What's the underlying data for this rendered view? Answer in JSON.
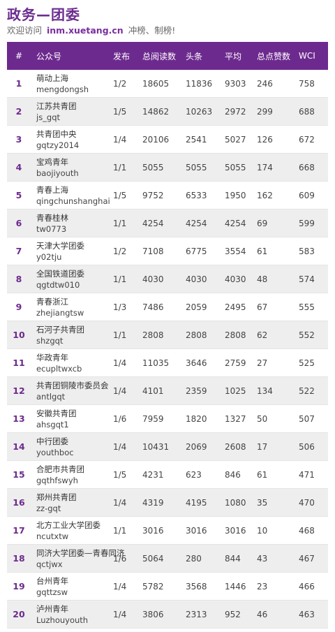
{
  "header": {
    "title": "政务—团委",
    "visit_prefix": "欢迎访问",
    "site": "inm.xuetang.cn",
    "visit_suffix": "冲榜、制榜!"
  },
  "table": {
    "columns": {
      "rank": "#",
      "name": "公众号",
      "pub": "发布",
      "reads": "总阅读数",
      "head": "头条",
      "avg": "平均",
      "likes": "总点赞数",
      "wci": "WCI"
    },
    "rows": [
      {
        "rank": "1",
        "name": "萌动上海",
        "account": "mengdongsh",
        "pub": "1/2",
        "reads": "18605",
        "head": "11836",
        "avg": "9303",
        "likes": "246",
        "wci": "758"
      },
      {
        "rank": "2",
        "name": "江苏共青团",
        "account": "js_gqt",
        "pub": "1/5",
        "reads": "14862",
        "head": "10263",
        "avg": "2972",
        "likes": "299",
        "wci": "688"
      },
      {
        "rank": "3",
        "name": "共青团中央",
        "account": "gqtzy2014",
        "pub": "1/4",
        "reads": "20106",
        "head": "2541",
        "avg": "5027",
        "likes": "126",
        "wci": "672"
      },
      {
        "rank": "4",
        "name": "宝鸡青年",
        "account": "baojiyouth",
        "pub": "1/1",
        "reads": "5055",
        "head": "5055",
        "avg": "5055",
        "likes": "174",
        "wci": "668"
      },
      {
        "rank": "5",
        "name": "青春上海",
        "account": "qingchunshanghai",
        "pub": "1/5",
        "reads": "9752",
        "head": "6533",
        "avg": "1950",
        "likes": "162",
        "wci": "609"
      },
      {
        "rank": "6",
        "name": "青春桂林",
        "account": "tw0773",
        "pub": "1/1",
        "reads": "4254",
        "head": "4254",
        "avg": "4254",
        "likes": "69",
        "wci": "599"
      },
      {
        "rank": "7",
        "name": "天津大学团委",
        "account": "y02tju",
        "pub": "1/2",
        "reads": "7108",
        "head": "6775",
        "avg": "3554",
        "likes": "61",
        "wci": "583"
      },
      {
        "rank": "8",
        "name": "全国铁道团委",
        "account": "qgtdtw010",
        "pub": "1/1",
        "reads": "4030",
        "head": "4030",
        "avg": "4030",
        "likes": "48",
        "wci": "574"
      },
      {
        "rank": "9",
        "name": "青春浙江",
        "account": "zhejiangtsw",
        "pub": "1/3",
        "reads": "7486",
        "head": "2059",
        "avg": "2495",
        "likes": "67",
        "wci": "555"
      },
      {
        "rank": "10",
        "name": "石河子共青团",
        "account": "shzgqt",
        "pub": "1/1",
        "reads": "2808",
        "head": "2808",
        "avg": "2808",
        "likes": "62",
        "wci": "552"
      },
      {
        "rank": "11",
        "name": "华政青年",
        "account": "ecupltwxcb",
        "pub": "1/4",
        "reads": "11035",
        "head": "3646",
        "avg": "2759",
        "likes": "27",
        "wci": "525"
      },
      {
        "rank": "12",
        "name": "共青团铜陵市委员会",
        "account": "antlgqt",
        "pub": "1/4",
        "reads": "4101",
        "head": "2359",
        "avg": "1025",
        "likes": "134",
        "wci": "522"
      },
      {
        "rank": "13",
        "name": "安徽共青团",
        "account": "ahsgqt1",
        "pub": "1/6",
        "reads": "7959",
        "head": "1820",
        "avg": "1327",
        "likes": "50",
        "wci": "507"
      },
      {
        "rank": "14",
        "name": "中行团委",
        "account": "youthboc",
        "pub": "1/4",
        "reads": "10431",
        "head": "2069",
        "avg": "2608",
        "likes": "17",
        "wci": "506"
      },
      {
        "rank": "15",
        "name": "合肥市共青团",
        "account": "gqthfswyh",
        "pub": "1/5",
        "reads": "4231",
        "head": "623",
        "avg": "846",
        "likes": "61",
        "wci": "471"
      },
      {
        "rank": "16",
        "name": "郑州共青团",
        "account": "zz-gqt",
        "pub": "1/4",
        "reads": "4319",
        "head": "4195",
        "avg": "1080",
        "likes": "35",
        "wci": "470"
      },
      {
        "rank": "17",
        "name": "北方工业大学团委",
        "account": "ncutxtw",
        "pub": "1/1",
        "reads": "3016",
        "head": "3016",
        "avg": "3016",
        "likes": "10",
        "wci": "468"
      },
      {
        "rank": "18",
        "name": "同济大学团委—青春同济",
        "account": "qctjwx",
        "pub": "1/6",
        "reads": "5064",
        "head": "280",
        "avg": "844",
        "likes": "43",
        "wci": "467"
      },
      {
        "rank": "19",
        "name": "台州青年",
        "account": "gqttzsw",
        "pub": "1/4",
        "reads": "5782",
        "head": "3568",
        "avg": "1446",
        "likes": "23",
        "wci": "466"
      },
      {
        "rank": "20",
        "name": "泸州青年",
        "account": "Luzhouyouth",
        "pub": "1/4",
        "reads": "3806",
        "head": "2313",
        "avg": "952",
        "likes": "46",
        "wci": "463"
      }
    ]
  },
  "colors": {
    "header_bg": "#6d2a8e",
    "title": "#6b2d8f",
    "alt_row": "#eeeeee"
  }
}
